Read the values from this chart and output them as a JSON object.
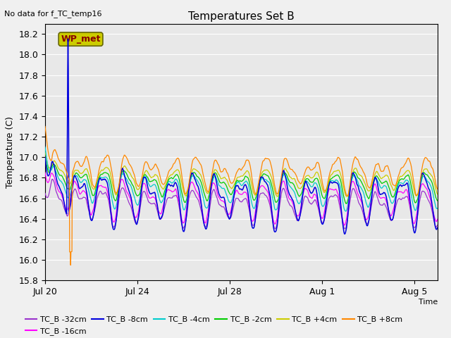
{
  "title": "Temperatures Set B",
  "subtitle": "No data for f_TC_temp16",
  "ylabel": "Temperature (C)",
  "xlabel": "Time",
  "wp_met_label": "WP_met",
  "ylim": [
    15.8,
    18.3
  ],
  "yticks": [
    15.8,
    16.0,
    16.2,
    16.4,
    16.6,
    16.8,
    17.0,
    17.2,
    17.4,
    17.6,
    17.8,
    18.0,
    18.2
  ],
  "tick_positions": [
    0,
    4,
    8,
    12,
    16
  ],
  "tick_labels": [
    "Jul 20",
    "Jul 24",
    "Jul 28",
    "Aug 1",
    "Aug 5"
  ],
  "xlim": [
    0,
    17
  ],
  "series_colors": {
    "TC_B -32cm": "#9933cc",
    "TC_B -16cm": "#ff00ff",
    "TC_B -8cm": "#0000dd",
    "TC_B -4cm": "#00cccc",
    "TC_B -2cm": "#00cc00",
    "TC_B +4cm": "#cccc00",
    "TC_B +8cm": "#ff8800"
  },
  "plot_bg": "#e8e8e8",
  "fig_bg": "#f0f0f0",
  "wp_met_box_color": "#cccc00",
  "wp_met_text_color": "#880000",
  "grid_color": "white",
  "lw": 0.9
}
